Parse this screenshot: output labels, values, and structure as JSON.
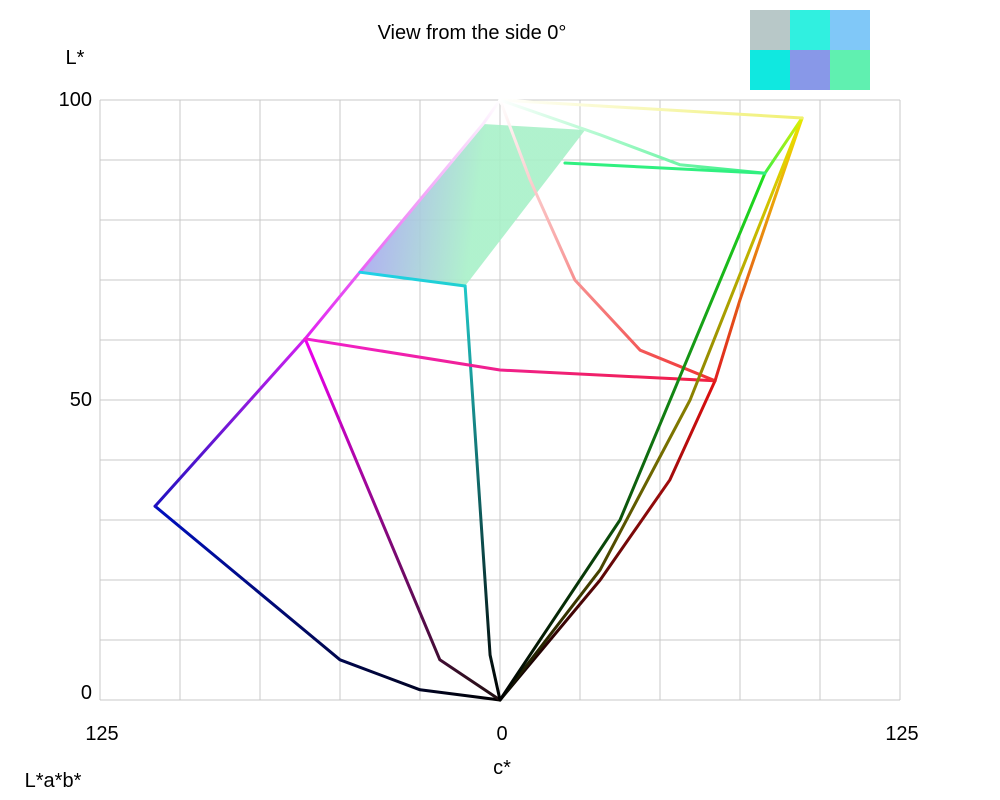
{
  "chart_data": {
    "type": "line",
    "title": "View from the side 0°",
    "ylabel": "L*",
    "xlabel": "c*",
    "footer": "L*a*b*",
    "xlim": [
      -125,
      125
    ],
    "ylim": [
      0,
      100
    ],
    "xticks": [
      {
        "value": -125,
        "label": "125"
      },
      0,
      125
    ],
    "yticks": [
      0,
      50,
      100
    ],
    "xgrid": [
      -100,
      -75,
      -50,
      -25,
      25,
      50,
      75,
      100
    ],
    "ygrid": [
      10,
      20,
      30,
      40,
      60,
      70,
      80,
      90
    ],
    "grid": true,
    "series": [
      {
        "colors": [
          "#a8a8f0",
          "#a8f0c8"
        ],
        "fill": true,
        "x": [
          -43.8,
          -5.3,
          26.6,
          -10.9
        ],
        "y": [
          71.3,
          96,
          95,
          69
        ]
      },
      {
        "colors": [
          "#000000",
          "#0010c0"
        ],
        "x": [
          0,
          -25,
          -50,
          -107.8
        ],
        "y": [
          0,
          1.7,
          6.7,
          32.3
        ]
      },
      {
        "colors": [
          "#2010c0",
          "#d020f0"
        ],
        "x": [
          -107.8,
          -60.9
        ],
        "y": [
          32.3,
          60.2
        ]
      },
      {
        "colors": [
          "#e020f0",
          "#ffffff"
        ],
        "x": [
          -60.9,
          -43.8,
          -5.3,
          0
        ],
        "y": [
          60.2,
          71.3,
          96,
          100
        ]
      },
      {
        "colors": [
          "#201010",
          "#f000f0"
        ],
        "x": [
          0,
          -18.8,
          -60.9
        ],
        "y": [
          0,
          6.7,
          60.2
        ]
      },
      {
        "colors": [
          "#000000",
          "#20c8c8"
        ],
        "x": [
          0,
          -3.1,
          -10.9
        ],
        "y": [
          0,
          7.5,
          69
        ]
      },
      {
        "colors": [
          "#20d0e8",
          "#20d0d0"
        ],
        "x": [
          -43.8,
          -10.9
        ],
        "y": [
          71.3,
          69
        ]
      },
      {
        "colors": [
          "#f020d0",
          "#f02040"
        ],
        "x": [
          -60.9,
          0,
          67.2
        ],
        "y": [
          60.2,
          55,
          53.2
        ]
      },
      {
        "colors": [
          "#ffffff",
          "#f03030"
        ],
        "x": [
          0,
          9.4,
          23.4,
          43.8,
          67.2
        ],
        "y": [
          100,
          86.7,
          70,
          58.3,
          53.2
        ]
      },
      {
        "colors": [
          "#000000",
          "#e01010"
        ],
        "x": [
          0,
          31.3,
          53.1,
          67.2
        ],
        "y": [
          0,
          20,
          36.7,
          53.2
        ]
      },
      {
        "colors": [
          "#e02020",
          "#f0e000"
        ],
        "x": [
          67.2,
          75,
          94.4
        ],
        "y": [
          53.2,
          66.7,
          97
        ]
      },
      {
        "colors": [
          "#101000",
          "#f0e000"
        ],
        "x": [
          0,
          31.3,
          59.4,
          94.4
        ],
        "y": [
          0,
          21.7,
          50,
          97
        ]
      },
      {
        "colors": [
          "#000000",
          "#20e020"
        ],
        "x": [
          0,
          37.5,
          82.8
        ],
        "y": [
          0,
          30,
          87.8
        ]
      },
      {
        "colors": [
          "#40f040",
          "#e0f000"
        ],
        "x": [
          82.8,
          94.4
        ],
        "y": [
          87.8,
          97
        ]
      },
      {
        "colors": [
          "#ffffff",
          "#f0f070"
        ],
        "x": [
          0,
          94.4
        ],
        "y": [
          100,
          97
        ]
      },
      {
        "colors": [
          "#ffffff",
          "#30f080"
        ],
        "x": [
          0,
          31.3,
          56.3,
          82.8
        ],
        "y": [
          100,
          94.2,
          89.2,
          87.8
        ]
      },
      {
        "colors": [
          "#30f080",
          "#30f080"
        ],
        "x": [
          82.8,
          20.3
        ],
        "y": [
          87.8,
          89.5
        ]
      }
    ]
  }
}
